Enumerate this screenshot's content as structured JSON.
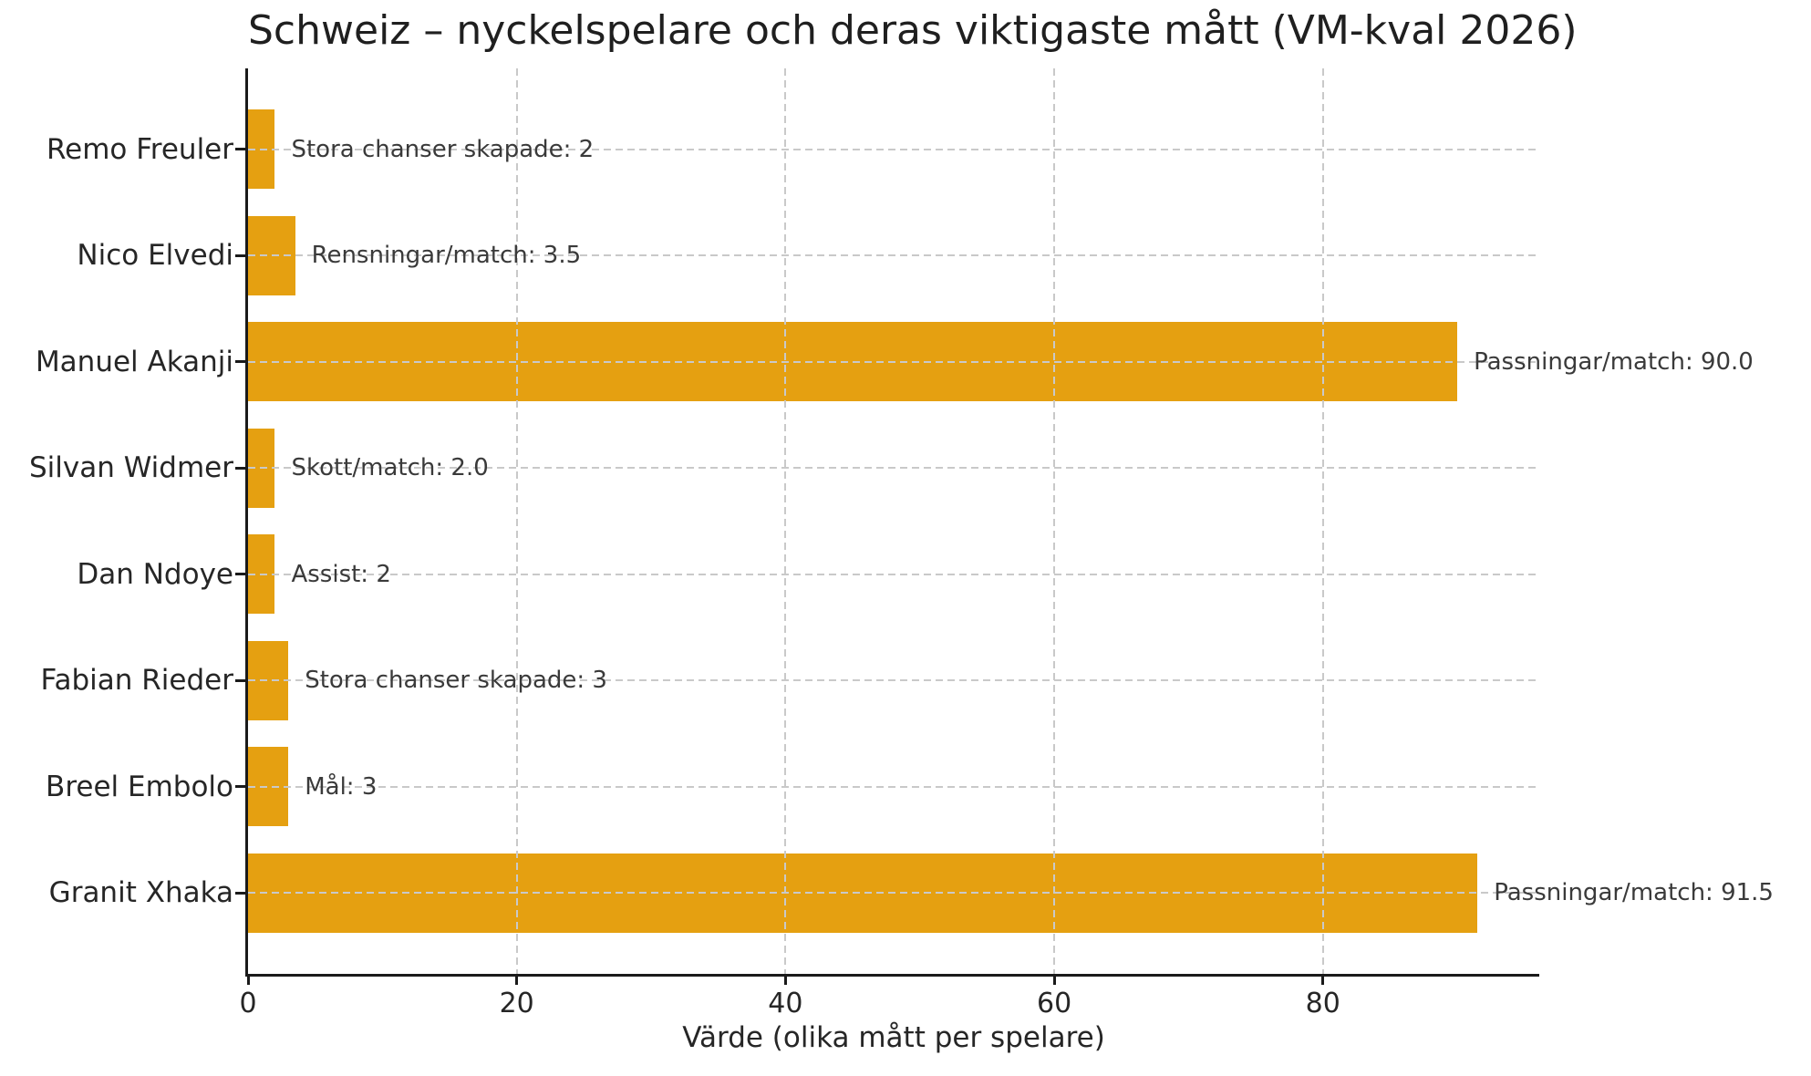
{
  "chart_data": {
    "type": "bar",
    "orientation": "horizontal",
    "title": "Schweiz – nyckelspelare och deras viktigaste mått (VM-kval 2026)",
    "xlabel": "Värde (olika mått per spelare)",
    "categories": [
      "Remo Freuler",
      "Nico Elvedi",
      "Manuel Akanji",
      "Silvan Widmer",
      "Dan Ndoye",
      "Fabian Rieder",
      "Breel Embolo",
      "Granit Xhaka"
    ],
    "values": [
      2,
      3.5,
      90.0,
      2.0,
      2,
      3,
      3,
      91.5
    ],
    "annotations": [
      "Stora chanser skapade: 2",
      "Rensningar/match: 3.5",
      "Passningar/match: 90.0",
      "Skott/match: 2.0",
      "Assist: 2",
      "Stora chanser skapade: 3",
      "Mål: 3",
      "Passningar/match: 91.5"
    ],
    "xticks": [
      0,
      20,
      40,
      60,
      80
    ],
    "xlim": [
      0,
      96.1
    ],
    "bar_height_frac": 0.75,
    "axis_margin_frac": 0.05,
    "bar_color": "#E5A011",
    "grid_color": "#C9C9C9",
    "spine_color": "#1a1a1a",
    "text_color": "#262626",
    "grid_style": "dashed",
    "legend": null
  }
}
